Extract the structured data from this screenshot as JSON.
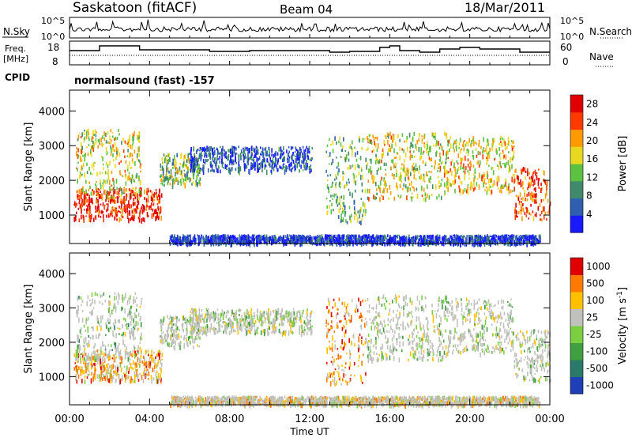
{
  "header": {
    "station": "Saskatoon (fitACF)",
    "beam": "Beam 04",
    "date": "18/Mar/2011"
  },
  "noise_panel": {
    "left_label": "N.Sky",
    "right_label": "N.Search",
    "left_ticks": [
      "10^5",
      "10^0"
    ],
    "right_ticks": [
      "10^5",
      "10^0"
    ]
  },
  "freq_panel": {
    "left_label_line1": "Freq.",
    "left_label_line2": "[MHz]",
    "right_label": "Nave",
    "left_ticks": [
      "18",
      "8"
    ],
    "right_ticks": [
      "60",
      "0"
    ]
  },
  "cpid": {
    "label": "CPID",
    "value": "normalsound (fast) -157"
  },
  "chart_data": [
    {
      "type": "heatmap",
      "title": "",
      "xlabel": "Time UT",
      "ylabel": "Slant Range [km]",
      "colorbar_label": "Power [dB]",
      "xticks": [
        "00:00",
        "04:00",
        "08:00",
        "12:00",
        "16:00",
        "20:00",
        "00:00"
      ],
      "xlim_hours": [
        0,
        24
      ],
      "yticks": [
        1000,
        2000,
        3000,
        4000
      ],
      "ylim": [
        180,
        4600
      ],
      "colorbar_ticks": [
        4,
        8,
        12,
        16,
        20,
        24,
        28
      ],
      "colorbar_range": [
        0,
        30
      ],
      "colors": [
        "#1a1aff",
        "#2f5fb0",
        "#3f8a6a",
        "#5cc040",
        "#e8d820",
        "#ff9a00",
        "#ff3a00",
        "#e00000"
      ],
      "regions": [
        {
          "t": [
            0.2,
            4.6
          ],
          "r": [
            900,
            1800
          ],
          "level": 0.92
        },
        {
          "t": [
            0.3,
            3.6
          ],
          "r": [
            1500,
            3500
          ],
          "level": 0.55
        },
        {
          "t": [
            4.5,
            6.5
          ],
          "r": [
            1900,
            2800
          ],
          "level": 0.45
        },
        {
          "t": [
            6.0,
            12.1
          ],
          "r": [
            2300,
            3000
          ],
          "level": 0.18
        },
        {
          "t": [
            12.8,
            14.8
          ],
          "r": [
            800,
            3300
          ],
          "level": 0.4
        },
        {
          "t": [
            14.8,
            18.8
          ],
          "r": [
            1500,
            3400
          ],
          "level": 0.55
        },
        {
          "t": [
            18.8,
            22.2
          ],
          "r": [
            1700,
            3300
          ],
          "level": 0.6
        },
        {
          "t": [
            22.2,
            24.0
          ],
          "r": [
            900,
            2400
          ],
          "level": 0.82
        },
        {
          "t": [
            5.0,
            23.5
          ],
          "r": [
            220,
            450
          ],
          "level": 0.12
        }
      ]
    },
    {
      "type": "heatmap",
      "title": "",
      "xlabel": "Time UT",
      "ylabel": "Slant Range [km]",
      "colorbar_label": "Velocity [m s^-1]",
      "xticks": [
        "00:00",
        "04:00",
        "08:00",
        "12:00",
        "16:00",
        "20:00",
        "00:00"
      ],
      "xlim_hours": [
        0,
        24
      ],
      "yticks": [
        1000,
        2000,
        3000,
        4000
      ],
      "ylim": [
        180,
        4600
      ],
      "colorbar_ticks": [
        "1000",
        "500",
        "100",
        "25",
        "-25",
        "-100",
        "-500",
        "-1000"
      ],
      "colors": [
        "#1f3fb8",
        "#2a7a6a",
        "#40a040",
        "#7ad040",
        "#c0c0bc",
        "#ffc000",
        "#ff7a00",
        "#e00000"
      ],
      "ground_scatter_color": "#c0c0bc",
      "regions": [
        {
          "t": [
            0.2,
            4.6
          ],
          "r": [
            900,
            1800
          ],
          "level": 0.7
        },
        {
          "t": [
            0.3,
            3.6
          ],
          "r": [
            1500,
            3500
          ],
          "level": 0.45
        },
        {
          "t": [
            4.5,
            6.5
          ],
          "r": [
            1900,
            2800
          ],
          "level": 0.5
        },
        {
          "t": [
            6.0,
            12.1
          ],
          "r": [
            2300,
            3000
          ],
          "level": 0.5
        },
        {
          "t": [
            12.8,
            14.8
          ],
          "r": [
            800,
            3300
          ],
          "level": 0.75
        },
        {
          "t": [
            14.8,
            18.8
          ],
          "r": [
            1500,
            3400
          ],
          "level": 0.5
        },
        {
          "t": [
            18.8,
            22.2
          ],
          "r": [
            1700,
            3300
          ],
          "level": 0.5
        },
        {
          "t": [
            22.2,
            24.0
          ],
          "r": [
            900,
            2400
          ],
          "level": 0.5
        },
        {
          "t": [
            5.0,
            23.5
          ],
          "r": [
            220,
            450
          ],
          "level": 0.65
        }
      ]
    }
  ]
}
